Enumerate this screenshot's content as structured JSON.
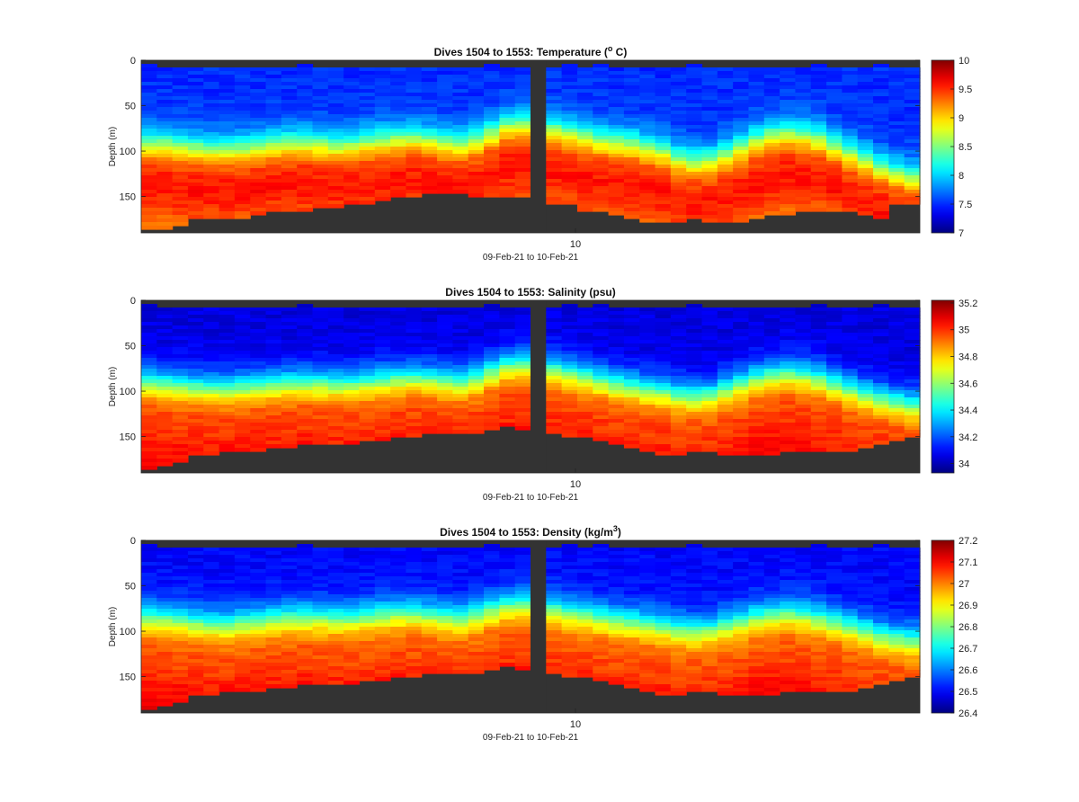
{
  "figure": {
    "background": "#ffffff",
    "seafloor_color": "#333333"
  },
  "chart_data": [
    {
      "type": "heatmap",
      "title": "Dives 1504 to 1553: Temperature (",
      "title_sup": "o",
      "title_tail": " C)",
      "ylabel": "Depth (m)",
      "xlabel": "09-Feb-21 to 10-Feb-21",
      "x_ticks": [
        "10"
      ],
      "y_ticks": [
        "0",
        "50",
        "100",
        "150"
      ],
      "ylim": [
        0,
        190
      ],
      "y_reversed": true,
      "dives": [
        1504,
        1553
      ],
      "colormap": "jet",
      "clim": [
        7,
        10
      ],
      "colorbar_ticks": [
        "10",
        "9.5",
        "9",
        "8.5",
        "8",
        "7.5",
        "7"
      ],
      "colorbar_values": [
        10,
        9.5,
        9,
        8.5,
        8,
        7.5,
        7
      ],
      "surface_value": 7.5,
      "deep_value": 9.6,
      "bottom_value": 9.2,
      "thermocline_depth_m": [
        92,
        92,
        95,
        96,
        98,
        97,
        97,
        94,
        92,
        91,
        90,
        92,
        94,
        93,
        90,
        88,
        86,
        85,
        87,
        90,
        92,
        88,
        80,
        72,
        70,
        72,
        76,
        80,
        84,
        88,
        90,
        92,
        96,
        100,
        108,
        112,
        110,
        104,
        96,
        88,
        82,
        80,
        82,
        86,
        94,
        102,
        110,
        118,
        124,
        128
      ],
      "seafloor_depth_m": [
        188,
        186,
        182,
        175,
        175,
        175,
        173,
        170,
        168,
        167,
        166,
        164,
        162,
        160,
        158,
        155,
        152,
        150,
        148,
        148,
        148,
        150,
        152,
        150,
        152,
        155,
        158,
        160,
        165,
        168,
        172,
        175,
        178,
        180,
        178,
        176,
        178,
        180,
        178,
        175,
        172,
        170,
        168,
        166,
        165,
        168,
        170,
        175,
        160,
        160
      ]
    },
    {
      "type": "heatmap",
      "title": "Dives 1504 to 1553: Salinity (psu)",
      "ylabel": "Depth (m)",
      "xlabel": "09-Feb-21 to 10-Feb-21",
      "x_ticks": [
        "10"
      ],
      "y_ticks": [
        "0",
        "50",
        "100",
        "150"
      ],
      "ylim": [
        0,
        190
      ],
      "y_reversed": true,
      "dives": [
        1504,
        1553
      ],
      "colormap": "jet",
      "clim": [
        33.93,
        35.22
      ],
      "colorbar_ticks": [
        "35.2",
        "35",
        "34.8",
        "34.6",
        "34.4",
        "34.2",
        "34"
      ],
      "colorbar_values": [
        35.2,
        35.0,
        34.8,
        34.6,
        34.4,
        34.2,
        34.0
      ],
      "surface_value": 34.05,
      "deep_value": 35.0,
      "bottom_value": 35.08,
      "thermocline_depth_m": [
        90,
        92,
        94,
        95,
        96,
        96,
        95,
        93,
        92,
        91,
        90,
        91,
        92,
        92,
        90,
        88,
        86,
        85,
        86,
        88,
        90,
        86,
        78,
        72,
        70,
        72,
        76,
        80,
        84,
        88,
        92,
        95,
        98,
        100,
        104,
        106,
        104,
        98,
        92,
        86,
        82,
        80,
        82,
        86,
        92,
        98,
        104,
        108,
        112,
        115
      ],
      "seafloor_depth_m": [
        186,
        184,
        180,
        172,
        170,
        168,
        166,
        165,
        164,
        162,
        160,
        160,
        159,
        158,
        156,
        154,
        152,
        150,
        148,
        147,
        146,
        146,
        142,
        140,
        142,
        145,
        148,
        150,
        152,
        156,
        160,
        164,
        168,
        170,
        170,
        168,
        165,
        170,
        172,
        172,
        170,
        168,
        166,
        165,
        165,
        166,
        162,
        158,
        154,
        150
      ]
    },
    {
      "type": "heatmap",
      "title": "Dives 1504 to 1553: Density (kg/m",
      "title_sup": "3",
      "title_tail": ")",
      "ylabel": "Depth (m)",
      "xlabel": "09-Feb-21 to 10-Feb-21",
      "x_ticks": [
        "10"
      ],
      "y_ticks": [
        "0",
        "50",
        "100",
        "150"
      ],
      "ylim": [
        0,
        190
      ],
      "y_reversed": true,
      "dives": [
        1504,
        1553
      ],
      "colormap": "jet",
      "clim": [
        26.4,
        27.2
      ],
      "colorbar_ticks": [
        "27.2",
        "27.1",
        "27",
        "26.9",
        "26.8",
        "26.7",
        "26.6",
        "26.5",
        "26.4"
      ],
      "colorbar_values": [
        27.2,
        27.1,
        27.0,
        26.9,
        26.8,
        26.7,
        26.6,
        26.5,
        26.4
      ],
      "surface_value": 26.5,
      "deep_value": 27.05,
      "bottom_value": 27.12,
      "thermocline_depth_m": [
        85,
        86,
        88,
        90,
        92,
        92,
        90,
        88,
        86,
        85,
        84,
        85,
        86,
        86,
        84,
        82,
        80,
        80,
        82,
        84,
        86,
        82,
        76,
        72,
        70,
        72,
        76,
        80,
        82,
        85,
        88,
        90,
        92,
        95,
        98,
        100,
        98,
        94,
        90,
        85,
        82,
        80,
        82,
        86,
        90,
        95,
        100,
        105,
        108,
        110
      ],
      "seafloor_depth_m": [
        186,
        184,
        180,
        172,
        170,
        168,
        166,
        165,
        164,
        162,
        160,
        160,
        159,
        158,
        156,
        154,
        152,
        150,
        148,
        147,
        146,
        146,
        142,
        140,
        142,
        145,
        148,
        150,
        152,
        156,
        160,
        164,
        168,
        170,
        170,
        168,
        165,
        170,
        172,
        172,
        170,
        168,
        166,
        165,
        165,
        166,
        162,
        158,
        154,
        150
      ]
    }
  ]
}
